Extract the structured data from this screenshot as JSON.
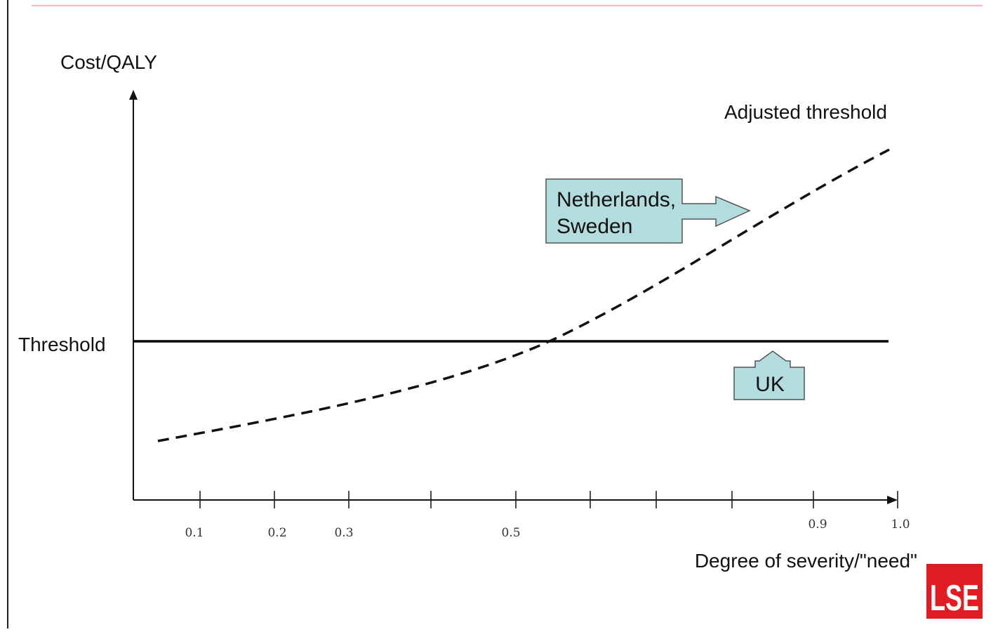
{
  "colors": {
    "background": "#ffffff",
    "axis": "#111111",
    "threshold_line": "#000000",
    "curve": "#111111",
    "callout_fill": "#b3dcdf",
    "callout_stroke": "#555555",
    "top_rule": "#f2b8b8",
    "left_rule": "#222222",
    "logo_bg": "#e01b22",
    "logo_text": "#ffffff"
  },
  "labels": {
    "y_axis": "Cost/QALY",
    "x_axis": "Degree of severity/\"need\"",
    "threshold": "Threshold",
    "adjusted": "Adjusted threshold"
  },
  "callouts": {
    "nl_line1": "Netherlands,",
    "nl_line2": "Sweden",
    "uk": "UK"
  },
  "ticks": {
    "t01": "0.1",
    "t02": "0.2",
    "t03": "0.3",
    "t05": "0.5",
    "t09": "0.9",
    "t10": "1.0"
  },
  "logo": {
    "text": "LSE"
  }
}
